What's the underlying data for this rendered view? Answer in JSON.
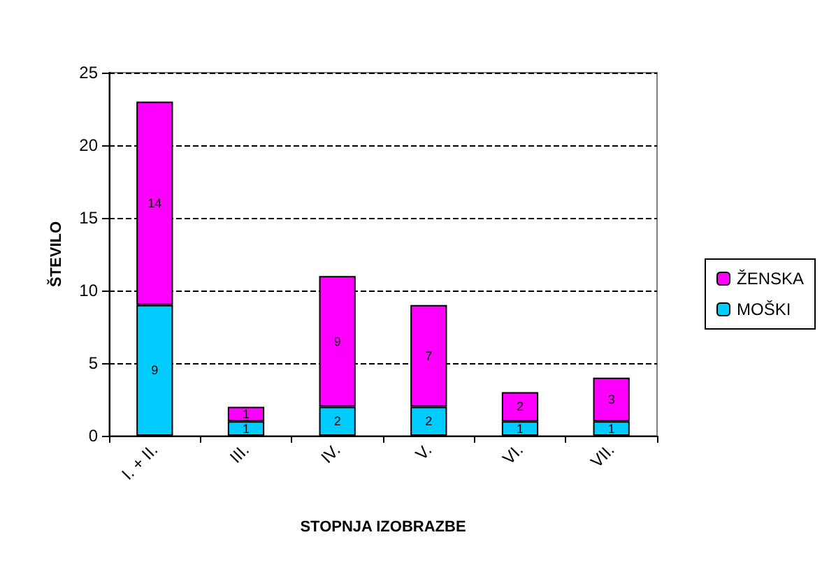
{
  "chart_data": {
    "type": "bar",
    "stacked": true,
    "xlabel": "STOPNJA IZOBRAZBE",
    "ylabel": "ŠTEVILO",
    "categories": [
      "I. + II.",
      "III.",
      "IV.",
      "V.",
      "VI.",
      "VII."
    ],
    "series": [
      {
        "name": "MOŠKI",
        "color": "#00ccff",
        "values": [
          9,
          1,
          2,
          2,
          1,
          1
        ]
      },
      {
        "name": "ŽENSKA",
        "color": "#ff00ff",
        "values": [
          14,
          1,
          9,
          7,
          2,
          3
        ]
      }
    ],
    "ylim": [
      0,
      25
    ],
    "yticks": [
      0,
      5,
      10,
      15,
      20,
      25
    ],
    "grid": "y",
    "legend": "right",
    "data_labels": true
  }
}
